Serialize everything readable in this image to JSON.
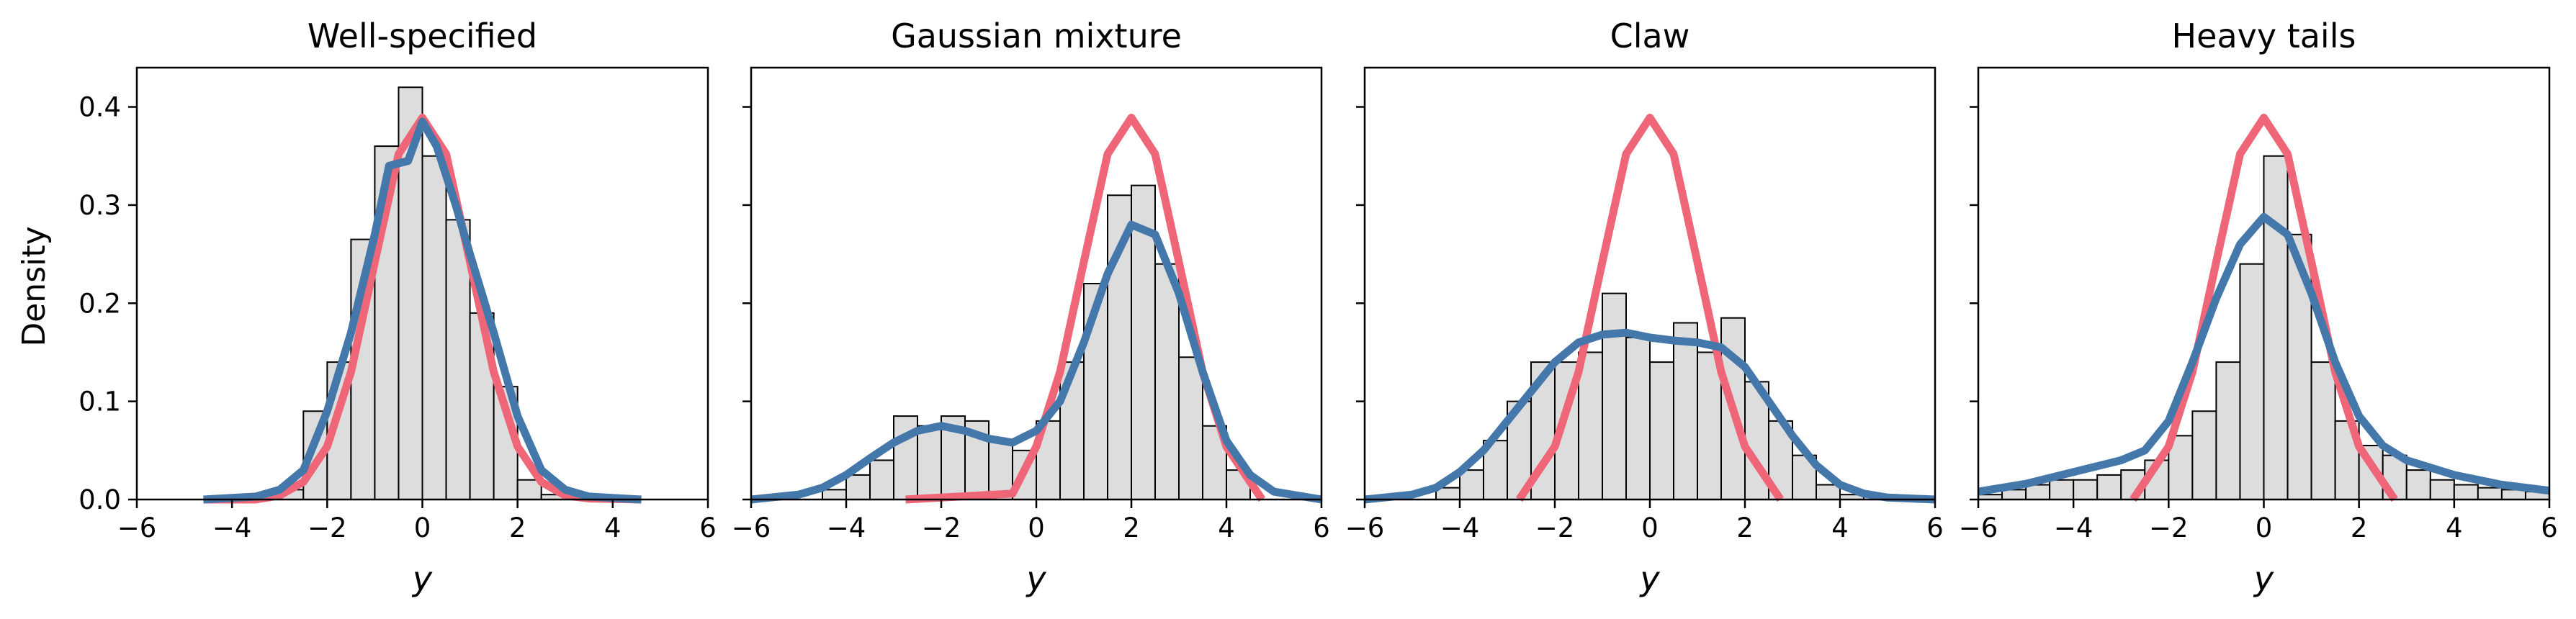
{
  "colors": {
    "histogram_fill": "#dddddd",
    "histogram_edge": "#000000",
    "true_density": "#ee6677",
    "estimated_density": "#4477aa"
  },
  "shared_ylabel": "Density",
  "chart_data": [
    {
      "type": "histogram+line",
      "title": "Well-specified",
      "xlabel": "y",
      "ylabel": "Density",
      "xlim": [
        -6,
        6
      ],
      "ylim": [
        0,
        0.44
      ],
      "xticks": [
        -6,
        -4,
        -2,
        0,
        2,
        4,
        6
      ],
      "yticks": [
        0.0,
        0.1,
        0.2,
        0.3,
        0.4
      ],
      "grid": false,
      "histogram": {
        "bin_edges": [
          -3.0,
          -2.5,
          -2.0,
          -1.5,
          -1.0,
          -0.5,
          0.0,
          0.5,
          1.0,
          1.5,
          2.0,
          2.5,
          3.0
        ],
        "heights": [
          0.01,
          0.09,
          0.14,
          0.265,
          0.36,
          0.42,
          0.35,
          0.285,
          0.19,
          0.115,
          0.02,
          0.005
        ]
      },
      "series": [
        {
          "role": "true_density",
          "x": [
            -4.6,
            -3.5,
            -3.0,
            -2.5,
            -2.0,
            -1.5,
            -1.0,
            -0.5,
            0.0,
            0.5,
            1.0,
            1.5,
            2.0,
            2.5,
            3.0,
            3.5,
            4.6
          ],
          "y": [
            0.0,
            0.0,
            0.004,
            0.018,
            0.054,
            0.13,
            0.242,
            0.352,
            0.389,
            0.352,
            0.242,
            0.13,
            0.054,
            0.018,
            0.004,
            0.001,
            0.0
          ]
        },
        {
          "role": "estimated_density",
          "x": [
            -4.6,
            -3.5,
            -3.0,
            -2.5,
            -2.0,
            -1.5,
            -1.0,
            -0.7,
            -0.3,
            0.0,
            0.3,
            0.7,
            1.0,
            1.5,
            2.0,
            2.5,
            3.0,
            3.5,
            4.6
          ],
          "y": [
            0.0,
            0.003,
            0.01,
            0.03,
            0.09,
            0.17,
            0.27,
            0.34,
            0.345,
            0.385,
            0.36,
            0.3,
            0.25,
            0.17,
            0.085,
            0.03,
            0.01,
            0.003,
            0.0
          ]
        }
      ]
    },
    {
      "type": "histogram+line",
      "title": "Gaussian mixture",
      "xlabel": "y",
      "xlim": [
        -6,
        6
      ],
      "ylim": [
        0,
        0.44
      ],
      "xticks": [
        -6,
        -4,
        -2,
        0,
        2,
        4,
        6
      ],
      "grid": false,
      "histogram": {
        "bin_edges": [
          -4.5,
          -4.0,
          -3.5,
          -3.0,
          -2.5,
          -2.0,
          -1.5,
          -1.0,
          -0.5,
          0.0,
          0.5,
          1.0,
          1.5,
          2.0,
          2.5,
          3.0,
          3.5,
          4.0,
          4.5
        ],
        "heights": [
          0.01,
          0.025,
          0.04,
          0.085,
          0.075,
          0.085,
          0.08,
          0.06,
          0.05,
          0.08,
          0.14,
          0.22,
          0.31,
          0.32,
          0.24,
          0.145,
          0.075,
          0.03
        ]
      },
      "series": [
        {
          "role": "true_density",
          "x": [
            -2.75,
            -0.5,
            0.0,
            0.5,
            1.0,
            1.5,
            2.0,
            2.5,
            3.0,
            3.5,
            4.0,
            4.5,
            4.75
          ],
          "y": [
            0.0,
            0.006,
            0.054,
            0.13,
            0.242,
            0.352,
            0.389,
            0.352,
            0.242,
            0.13,
            0.054,
            0.018,
            0.0
          ]
        },
        {
          "role": "estimated_density",
          "x": [
            -6.0,
            -5.0,
            -4.5,
            -4.0,
            -3.5,
            -3.0,
            -2.5,
            -2.0,
            -1.5,
            -1.0,
            -0.5,
            0.0,
            0.5,
            1.0,
            1.5,
            2.0,
            2.5,
            3.0,
            3.5,
            4.0,
            4.5,
            5.0,
            6.0
          ],
          "y": [
            0.0,
            0.005,
            0.012,
            0.025,
            0.042,
            0.058,
            0.07,
            0.075,
            0.07,
            0.062,
            0.058,
            0.07,
            0.1,
            0.16,
            0.23,
            0.28,
            0.27,
            0.21,
            0.13,
            0.06,
            0.025,
            0.008,
            0.0
          ]
        }
      ]
    },
    {
      "type": "histogram+line",
      "title": "Claw",
      "xlabel": "y",
      "xlim": [
        -6,
        6
      ],
      "ylim": [
        0,
        0.44
      ],
      "xticks": [
        -6,
        -4,
        -2,
        0,
        2,
        4,
        6
      ],
      "grid": false,
      "histogram": {
        "bin_edges": [
          -4.5,
          -4.0,
          -3.5,
          -3.0,
          -2.5,
          -2.0,
          -1.5,
          -1.0,
          -0.5,
          0.0,
          0.5,
          1.0,
          1.5,
          2.0,
          2.5,
          3.0,
          3.5,
          4.0,
          4.5
        ],
        "heights": [
          0.012,
          0.03,
          0.06,
          0.1,
          0.14,
          0.14,
          0.15,
          0.21,
          0.165,
          0.14,
          0.18,
          0.15,
          0.185,
          0.12,
          0.08,
          0.045,
          0.015,
          0.005
        ]
      },
      "series": [
        {
          "role": "true_density",
          "x": [
            -2.75,
            -2.5,
            -2.0,
            -1.5,
            -1.0,
            -0.5,
            0.0,
            0.5,
            1.0,
            1.5,
            2.0,
            2.5,
            2.75
          ],
          "y": [
            0.0,
            0.018,
            0.054,
            0.13,
            0.242,
            0.352,
            0.389,
            0.352,
            0.242,
            0.13,
            0.054,
            0.018,
            0.0
          ]
        },
        {
          "role": "estimated_density",
          "x": [
            -6.0,
            -5.0,
            -4.5,
            -4.0,
            -3.5,
            -3.0,
            -2.5,
            -2.0,
            -1.5,
            -1.0,
            -0.5,
            0.0,
            0.5,
            1.0,
            1.5,
            2.0,
            2.5,
            3.0,
            3.5,
            4.0,
            4.5,
            5.0,
            6.0
          ],
          "y": [
            0.0,
            0.005,
            0.012,
            0.028,
            0.05,
            0.08,
            0.11,
            0.14,
            0.16,
            0.168,
            0.17,
            0.165,
            0.162,
            0.16,
            0.155,
            0.135,
            0.1,
            0.065,
            0.035,
            0.015,
            0.006,
            0.002,
            0.0
          ]
        }
      ]
    },
    {
      "type": "histogram+line",
      "title": "Heavy tails",
      "xlabel": "y",
      "xlim": [
        -6,
        6
      ],
      "ylim": [
        0,
        0.44
      ],
      "xticks": [
        -6,
        -4,
        -2,
        0,
        2,
        4,
        6
      ],
      "grid": false,
      "histogram": {
        "bin_edges": [
          -6.0,
          -5.5,
          -5.0,
          -4.5,
          -4.0,
          -3.5,
          -3.0,
          -2.5,
          -2.0,
          -1.5,
          -1.0,
          -0.5,
          0.0,
          0.5,
          1.0,
          1.5,
          2.0,
          2.5,
          3.0,
          3.5,
          4.0,
          4.5,
          5.0,
          5.5,
          6.0
        ],
        "heights": [
          0.005,
          0.01,
          0.015,
          0.02,
          0.02,
          0.025,
          0.03,
          0.04,
          0.065,
          0.09,
          0.14,
          0.24,
          0.35,
          0.27,
          0.14,
          0.08,
          0.055,
          0.045,
          0.03,
          0.02,
          0.015,
          0.012,
          0.01,
          0.008
        ]
      },
      "series": [
        {
          "role": "true_density",
          "x": [
            -2.75,
            -2.5,
            -2.0,
            -1.5,
            -1.0,
            -0.5,
            0.0,
            0.5,
            1.0,
            1.5,
            2.0,
            2.5,
            2.75
          ],
          "y": [
            0.0,
            0.018,
            0.054,
            0.13,
            0.242,
            0.352,
            0.389,
            0.352,
            0.242,
            0.13,
            0.054,
            0.018,
            0.0
          ]
        },
        {
          "role": "estimated_density",
          "x": [
            -6.0,
            -5.0,
            -4.0,
            -3.0,
            -2.5,
            -2.0,
            -1.5,
            -1.0,
            -0.5,
            0.0,
            0.5,
            1.0,
            1.5,
            2.0,
            2.5,
            3.0,
            4.0,
            5.0,
            6.0
          ],
          "y": [
            0.008,
            0.016,
            0.028,
            0.04,
            0.05,
            0.08,
            0.14,
            0.205,
            0.26,
            0.288,
            0.27,
            0.21,
            0.14,
            0.085,
            0.055,
            0.04,
            0.025,
            0.015,
            0.009
          ]
        }
      ]
    }
  ]
}
